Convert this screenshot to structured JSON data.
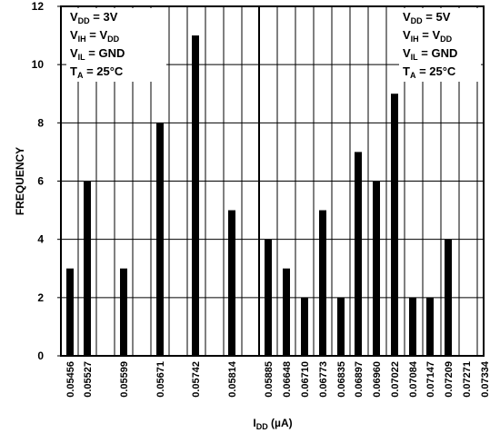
{
  "chart_data": {
    "type": "bar",
    "ylabel": "FREQUENCY",
    "xlabel": {
      "main": "I",
      "sub": "DD",
      "unit": " (µA)"
    },
    "ylim": [
      0,
      12
    ],
    "yticks": [
      0,
      2,
      4,
      6,
      8,
      10,
      12
    ],
    "grid": true,
    "categories": [
      "0.05456",
      "0.05527",
      "0.05599",
      "0.05671",
      "0.05742",
      "0.05814",
      "0.05885",
      "0.06648",
      "0.06710",
      "0.06773",
      "0.06835",
      "0.06897",
      "0.06960",
      "0.07022",
      "0.07084",
      "0.07147",
      "0.07209",
      "0.07271",
      "0.07334"
    ],
    "panels": [
      {
        "name": "left",
        "categories": [
          "0.05456",
          "0.05527",
          "0.05599",
          "0.05671",
          "0.05742",
          "0.05814"
        ],
        "values": [
          3,
          6,
          3,
          8,
          11,
          5
        ],
        "annotation": [
          {
            "main": "V",
            "sub": "DD",
            "rest": " = 3V"
          },
          {
            "main": "V",
            "sub": "IH",
            "rest": " = V",
            "sub2": "DD"
          },
          {
            "main": "V",
            "sub": "IL",
            "rest": " = GND"
          },
          {
            "main": "T",
            "sub": "A",
            "rest": " = 25°C"
          }
        ]
      },
      {
        "name": "right",
        "categories": [
          "0.05885",
          "0.06648",
          "0.06710",
          "0.06773",
          "0.06835",
          "0.06897",
          "0.06960",
          "0.07022",
          "0.07084",
          "0.07147",
          "0.07209",
          "0.07271",
          "0.07334"
        ],
        "values": [
          4,
          3,
          2,
          5,
          2,
          7,
          6,
          9,
          2,
          2,
          4,
          0,
          0
        ],
        "annotation": [
          {
            "main": "V",
            "sub": "DD",
            "rest": " = 5V"
          },
          {
            "main": "V",
            "sub": "IH",
            "rest": " = V",
            "sub2": "DD"
          },
          {
            "main": "V",
            "sub": "IL",
            "rest": " = GND"
          },
          {
            "main": "T",
            "sub": "A",
            "rest": " = 25°C"
          }
        ]
      }
    ]
  }
}
